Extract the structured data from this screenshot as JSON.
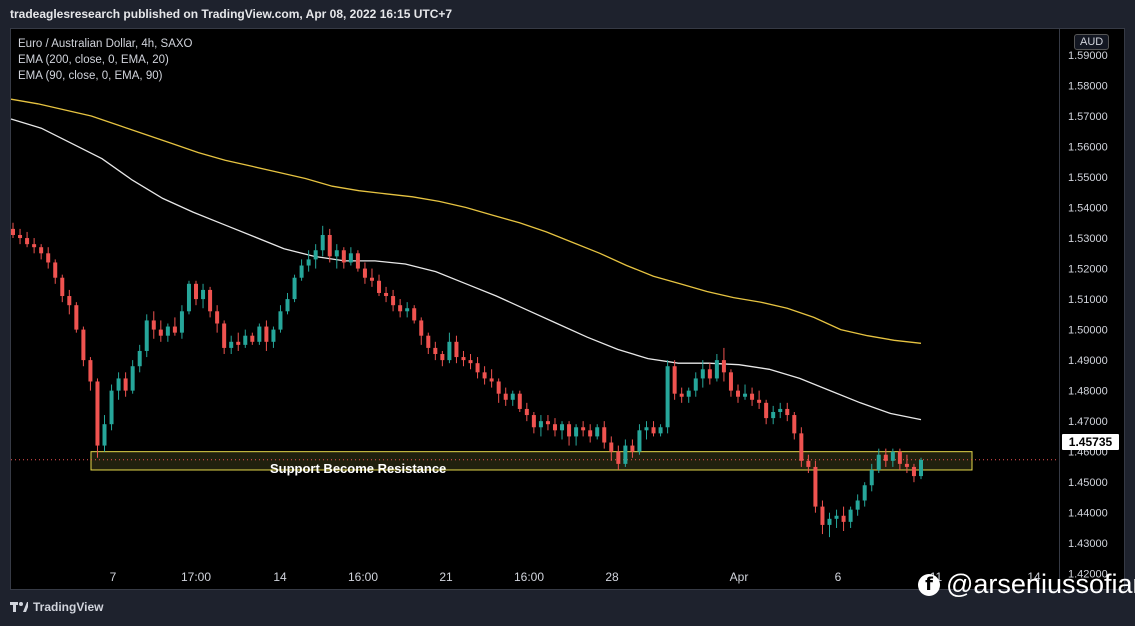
{
  "header": {
    "text": "tradeaglesresearch published on TradingView.com, Apr 08, 2022 16:15 UTC+7"
  },
  "legend": {
    "symbol": "Euro / Australian Dollar, 4h, SAXO",
    "ema200": "EMA (200, close, 0, EMA, 20)",
    "ema90": "EMA (90, close, 0, EMA, 90)"
  },
  "currency_label": "AUD",
  "current_price_label": "1.45735",
  "annotation": "Support Become Resistance",
  "footer": {
    "brand": "TradingView"
  },
  "watermark": "@arseniussofian",
  "colors": {
    "up": "#26a69a",
    "down": "#ef5350",
    "ema200": "#e6c341",
    "ema90": "#e8e8e8",
    "zone_border": "#e6d84a",
    "zone_fill": "#3a3a1a",
    "price_line": "#ef5350"
  },
  "chart_data": {
    "type": "candlestick",
    "y_ticks": [
      "1.42000",
      "1.43000",
      "1.44000",
      "1.45000",
      "1.46000",
      "1.47000",
      "1.48000",
      "1.49000",
      "1.50000",
      "1.51000",
      "1.52000",
      "1.53000",
      "1.54000",
      "1.55000",
      "1.56000",
      "1.57000",
      "1.58000",
      "1.59000"
    ],
    "ylim": [
      1.415,
      1.5985
    ],
    "x_ticks": [
      "7",
      "17:00",
      "14",
      "16:00",
      "21",
      "16:00",
      "28",
      "Apr",
      "6",
      "11",
      "14"
    ],
    "current_price": 1.45735,
    "support_zone": [
      1.454,
      1.46
    ],
    "ema200": [
      1.5755,
      1.574,
      1.572,
      1.57,
      1.567,
      1.564,
      1.561,
      1.558,
      1.5555,
      1.5535,
      1.5515,
      1.5495,
      1.547,
      1.5455,
      1.5445,
      1.5435,
      1.542,
      1.54,
      1.5375,
      1.535,
      1.532,
      1.5285,
      1.525,
      1.521,
      1.5175,
      1.515,
      1.5125,
      1.5105,
      1.509,
      1.507,
      1.504,
      1.5,
      1.498,
      1.4965,
      1.4955
    ],
    "ema90": [
      1.569,
      1.566,
      1.561,
      1.556,
      1.549,
      1.543,
      1.5385,
      1.5345,
      1.5305,
      1.5265,
      1.524,
      1.5225,
      1.5225,
      1.5215,
      1.519,
      1.515,
      1.511,
      1.5065,
      1.502,
      1.4975,
      1.4935,
      1.4905,
      1.489,
      1.489,
      1.4885,
      1.487,
      1.484,
      1.48,
      1.476,
      1.4725,
      1.4705
    ],
    "candles": [
      [
        1.533,
        1.535,
        1.53,
        1.531
      ],
      [
        1.531,
        1.533,
        1.528,
        1.53
      ],
      [
        1.53,
        1.532,
        1.527,
        1.528
      ],
      [
        1.528,
        1.53,
        1.525,
        1.527
      ],
      [
        1.527,
        1.528,
        1.523,
        1.525
      ],
      [
        1.525,
        1.527,
        1.52,
        1.522
      ],
      [
        1.522,
        1.523,
        1.515,
        1.517
      ],
      [
        1.517,
        1.518,
        1.509,
        1.511
      ],
      [
        1.511,
        1.513,
        1.505,
        1.508
      ],
      [
        1.508,
        1.509,
        1.499,
        1.5
      ],
      [
        1.5,
        1.501,
        1.488,
        1.49
      ],
      [
        1.49,
        1.491,
        1.48,
        1.483
      ],
      [
        1.483,
        1.484,
        1.458,
        1.462
      ],
      [
        1.462,
        1.472,
        1.46,
        1.469
      ],
      [
        1.469,
        1.482,
        1.467,
        1.48
      ],
      [
        1.48,
        1.486,
        1.477,
        1.484
      ],
      [
        1.484,
        1.486,
        1.478,
        1.48
      ],
      [
        1.48,
        1.49,
        1.479,
        1.488
      ],
      [
        1.488,
        1.495,
        1.486,
        1.493
      ],
      [
        1.493,
        1.505,
        1.491,
        1.503
      ],
      [
        1.503,
        1.506,
        1.497,
        1.5
      ],
      [
        1.5,
        1.503,
        1.496,
        1.498
      ],
      [
        1.498,
        1.502,
        1.496,
        1.501
      ],
      [
        1.501,
        1.504,
        1.498,
        1.499
      ],
      [
        1.499,
        1.508,
        1.497,
        1.506
      ],
      [
        1.506,
        1.516,
        1.505,
        1.515
      ],
      [
        1.515,
        1.516,
        1.508,
        1.51
      ],
      [
        1.51,
        1.515,
        1.507,
        1.513
      ],
      [
        1.513,
        1.514,
        1.504,
        1.506
      ],
      [
        1.506,
        1.508,
        1.499,
        1.502
      ],
      [
        1.502,
        1.503,
        1.492,
        1.494
      ],
      [
        1.494,
        1.498,
        1.492,
        1.496
      ],
      [
        1.496,
        1.499,
        1.493,
        1.495
      ],
      [
        1.495,
        1.5,
        1.494,
        1.498
      ],
      [
        1.498,
        1.499,
        1.495,
        1.496
      ],
      [
        1.496,
        1.502,
        1.495,
        1.501
      ],
      [
        1.501,
        1.503,
        1.493,
        1.496
      ],
      [
        1.496,
        1.501,
        1.494,
        1.5
      ],
      [
        1.5,
        1.508,
        1.499,
        1.506
      ],
      [
        1.506,
        1.512,
        1.505,
        1.51
      ],
      [
        1.51,
        1.518,
        1.509,
        1.517
      ],
      [
        1.517,
        1.523,
        1.516,
        1.521
      ],
      [
        1.521,
        1.526,
        1.519,
        1.523
      ],
      [
        1.523,
        1.528,
        1.52,
        1.526
      ],
      [
        1.526,
        1.534,
        1.524,
        1.531
      ],
      [
        1.531,
        1.533,
        1.522,
        1.524
      ],
      [
        1.524,
        1.528,
        1.52,
        1.526
      ],
      [
        1.526,
        1.527,
        1.52,
        1.522
      ],
      [
        1.522,
        1.527,
        1.521,
        1.525
      ],
      [
        1.525,
        1.526,
        1.519,
        1.52
      ],
      [
        1.52,
        1.522,
        1.515,
        1.517
      ],
      [
        1.517,
        1.52,
        1.514,
        1.516
      ],
      [
        1.516,
        1.518,
        1.511,
        1.512
      ],
      [
        1.512,
        1.514,
        1.509,
        1.511
      ],
      [
        1.511,
        1.513,
        1.506,
        1.508
      ],
      [
        1.508,
        1.51,
        1.504,
        1.506
      ],
      [
        1.506,
        1.509,
        1.504,
        1.507
      ],
      [
        1.507,
        1.508,
        1.502,
        1.503
      ],
      [
        1.503,
        1.504,
        1.495,
        1.498
      ],
      [
        1.498,
        1.499,
        1.492,
        1.494
      ],
      [
        1.494,
        1.496,
        1.49,
        1.492
      ],
      [
        1.492,
        1.493,
        1.488,
        1.49
      ],
      [
        1.49,
        1.499,
        1.489,
        1.496
      ],
      [
        1.496,
        1.498,
        1.489,
        1.491
      ],
      [
        1.491,
        1.493,
        1.488,
        1.49
      ],
      [
        1.49,
        1.492,
        1.487,
        1.489
      ],
      [
        1.489,
        1.491,
        1.484,
        1.486
      ],
      [
        1.486,
        1.488,
        1.482,
        1.484
      ],
      [
        1.484,
        1.487,
        1.481,
        1.483
      ],
      [
        1.483,
        1.484,
        1.476,
        1.479
      ],
      [
        1.479,
        1.481,
        1.475,
        1.477
      ],
      [
        1.477,
        1.48,
        1.475,
        1.479
      ],
      [
        1.479,
        1.48,
        1.473,
        1.474
      ],
      [
        1.474,
        1.476,
        1.47,
        1.472
      ],
      [
        1.472,
        1.473,
        1.466,
        1.468
      ],
      [
        1.468,
        1.472,
        1.465,
        1.47
      ],
      [
        1.47,
        1.472,
        1.467,
        1.469
      ],
      [
        1.469,
        1.471,
        1.465,
        1.467
      ],
      [
        1.467,
        1.47,
        1.464,
        1.469
      ],
      [
        1.469,
        1.47,
        1.462,
        1.465
      ],
      [
        1.465,
        1.469,
        1.462,
        1.468
      ],
      [
        1.468,
        1.47,
        1.465,
        1.467
      ],
      [
        1.467,
        1.469,
        1.463,
        1.465
      ],
      [
        1.465,
        1.469,
        1.464,
        1.468
      ],
      [
        1.468,
        1.47,
        1.461,
        1.463
      ],
      [
        1.463,
        1.465,
        1.457,
        1.46
      ],
      [
        1.46,
        1.462,
        1.454,
        1.456
      ],
      [
        1.456,
        1.464,
        1.455,
        1.462
      ],
      [
        1.462,
        1.464,
        1.458,
        1.46
      ],
      [
        1.46,
        1.469,
        1.459,
        1.467
      ],
      [
        1.467,
        1.47,
        1.464,
        1.468
      ],
      [
        1.468,
        1.47,
        1.465,
        1.466
      ],
      [
        1.466,
        1.469,
        1.465,
        1.468
      ],
      [
        1.468,
        1.49,
        1.466,
        1.488
      ],
      [
        1.488,
        1.49,
        1.477,
        1.479
      ],
      [
        1.479,
        1.481,
        1.476,
        1.478
      ],
      [
        1.478,
        1.481,
        1.476,
        1.48
      ],
      [
        1.48,
        1.486,
        1.478,
        1.484
      ],
      [
        1.484,
        1.49,
        1.481,
        1.487
      ],
      [
        1.487,
        1.489,
        1.482,
        1.484
      ],
      [
        1.484,
        1.492,
        1.483,
        1.49
      ],
      [
        1.49,
        1.494,
        1.483,
        1.486
      ],
      [
        1.486,
        1.487,
        1.478,
        1.48
      ],
      [
        1.48,
        1.482,
        1.476,
        1.478
      ],
      [
        1.478,
        1.482,
        1.477,
        1.479
      ],
      [
        1.479,
        1.481,
        1.475,
        1.477
      ],
      [
        1.477,
        1.48,
        1.474,
        1.476
      ],
      [
        1.476,
        1.477,
        1.469,
        1.471
      ],
      [
        1.471,
        1.475,
        1.469,
        1.473
      ],
      [
        1.473,
        1.476,
        1.471,
        1.474
      ],
      [
        1.474,
        1.476,
        1.47,
        1.472
      ],
      [
        1.472,
        1.473,
        1.464,
        1.466
      ],
      [
        1.466,
        1.468,
        1.455,
        1.457
      ],
      [
        1.457,
        1.459,
        1.453,
        1.455
      ],
      [
        1.455,
        1.457,
        1.44,
        1.442
      ],
      [
        1.442,
        1.444,
        1.433,
        1.436
      ],
      [
        1.436,
        1.44,
        1.432,
        1.438
      ],
      [
        1.438,
        1.441,
        1.435,
        1.439
      ],
      [
        1.439,
        1.442,
        1.434,
        1.437
      ],
      [
        1.437,
        1.442,
        1.435,
        1.441
      ],
      [
        1.441,
        1.446,
        1.439,
        1.444
      ],
      [
        1.444,
        1.45,
        1.442,
        1.449
      ],
      [
        1.449,
        1.456,
        1.447,
        1.454
      ],
      [
        1.454,
        1.461,
        1.453,
        1.459
      ],
      [
        1.459,
        1.461,
        1.455,
        1.457
      ],
      [
        1.457,
        1.461,
        1.455,
        1.46
      ],
      [
        1.46,
        1.461,
        1.454,
        1.456
      ],
      [
        1.456,
        1.459,
        1.453,
        1.455
      ],
      [
        1.455,
        1.456,
        1.45,
        1.452
      ],
      [
        1.452,
        1.458,
        1.451,
        1.4573
      ]
    ]
  }
}
